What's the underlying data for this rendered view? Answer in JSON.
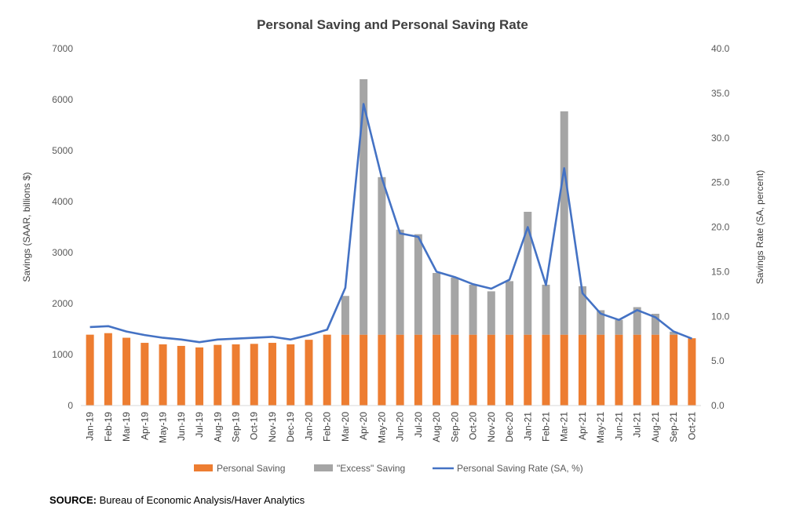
{
  "chart_data": {
    "type": "bar",
    "title": "Personal Saving and Personal Saving Rate",
    "ylabel": "Savings (SAAR, billions $)",
    "y2label": "Savings Rate (SA, percent)",
    "ylim": [
      0,
      7000
    ],
    "y2lim": [
      0,
      40
    ],
    "yticks": [
      "0",
      "1000",
      "2000",
      "3000",
      "4000",
      "5000",
      "6000",
      "7000"
    ],
    "y2ticks": [
      "0.0",
      "5.0",
      "10.0",
      "15.0",
      "20.0",
      "25.0",
      "30.0",
      "35.0",
      "40.0"
    ],
    "categories": [
      "Jan-19",
      "Feb-19",
      "Mar-19",
      "Apr-19",
      "May-19",
      "Jun-19",
      "Jul-19",
      "Aug-19",
      "Sep-19",
      "Oct-19",
      "Nov-19",
      "Dec-19",
      "Jan-20",
      "Feb-20",
      "Mar-20",
      "Apr-20",
      "May-20",
      "Jun-20",
      "Jul-20",
      "Aug-20",
      "Sep-20",
      "Oct-20",
      "Nov-20",
      "Dec-20",
      "Jan-21",
      "Feb-21",
      "Mar-21",
      "Apr-21",
      "May-21",
      "Jun-21",
      "Jul-21",
      "Aug-21",
      "Sep-21",
      "Oct-21"
    ],
    "series": [
      {
        "name": "Personal Saving",
        "type": "bar",
        "color": "#ed7d31",
        "values": [
          1390,
          1420,
          1330,
          1230,
          1200,
          1170,
          1140,
          1190,
          1200,
          1210,
          1230,
          1200,
          1290,
          1390,
          1390,
          1390,
          1390,
          1390,
          1390,
          1390,
          1390,
          1390,
          1390,
          1390,
          1390,
          1390,
          1390,
          1390,
          1390,
          1390,
          1390,
          1390,
          1390,
          1320
        ]
      },
      {
        "name": "\"Excess\" Saving",
        "type": "bar",
        "color": "#a5a5a5",
        "values": [
          0,
          0,
          0,
          0,
          0,
          0,
          0,
          0,
          0,
          0,
          0,
          0,
          0,
          0,
          760,
          5010,
          3090,
          2060,
          1970,
          1210,
          1120,
          980,
          850,
          1050,
          2410,
          980,
          4380,
          950,
          480,
          290,
          540,
          410,
          60,
          0
        ]
      },
      {
        "name": "Personal Saving Rate (SA, %)",
        "type": "line",
        "axis": "right",
        "color": "#4472c4",
        "values": [
          8.8,
          8.9,
          8.3,
          7.9,
          7.6,
          7.4,
          7.1,
          7.4,
          7.5,
          7.6,
          7.7,
          7.4,
          7.9,
          8.5,
          13.2,
          33.8,
          25.5,
          19.3,
          18.9,
          15.0,
          14.4,
          13.6,
          13.1,
          14.1,
          20.0,
          13.5,
          26.6,
          12.6,
          10.3,
          9.6,
          10.7,
          9.9,
          8.3,
          7.5
        ]
      }
    ],
    "legend": "bottom"
  },
  "source_label": "SOURCE:",
  "source_text": " Bureau of Economic Analysis/Haver Analytics"
}
